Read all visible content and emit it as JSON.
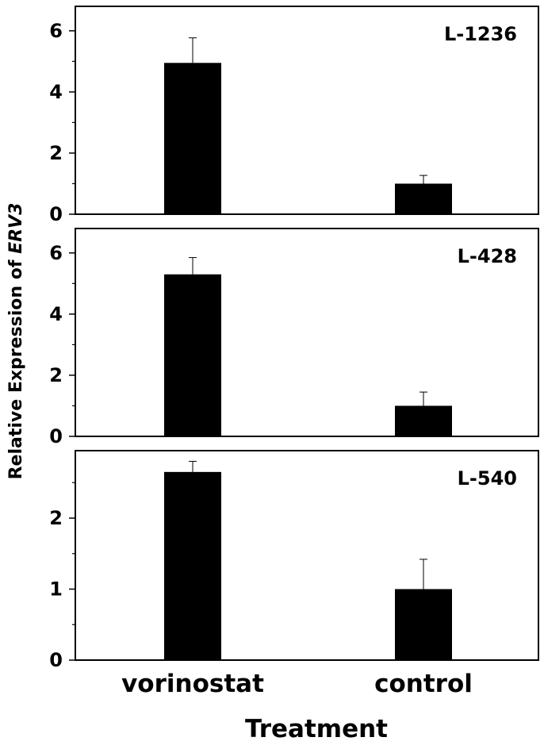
{
  "chart_data": [
    {
      "type": "bar",
      "label": "L-1236",
      "categories": [
        "vorinostat",
        "control"
      ],
      "values": [
        4.95,
        1.0
      ],
      "errors": [
        0.82,
        0.27
      ],
      "ylim": [
        0,
        6.8
      ],
      "yticks": [
        0,
        2,
        4,
        6
      ],
      "minor_ticks": [
        1,
        3,
        5
      ]
    },
    {
      "type": "bar",
      "label": "L-428",
      "categories": [
        "vorinostat",
        "control"
      ],
      "values": [
        5.3,
        1.0
      ],
      "errors": [
        0.55,
        0.45
      ],
      "ylim": [
        0,
        6.8
      ],
      "yticks": [
        0,
        2,
        4,
        6
      ],
      "minor_ticks": [
        1,
        3,
        5
      ]
    },
    {
      "type": "bar",
      "label": "L-540",
      "categories": [
        "vorinostat",
        "control"
      ],
      "values": [
        2.65,
        1.0
      ],
      "errors": [
        0.15,
        0.42
      ],
      "ylim": [
        0,
        2.95
      ],
      "yticks": [
        0,
        1,
        2
      ],
      "minor_ticks": [
        0.5,
        1.5,
        2.5
      ]
    }
  ],
  "xlabel": "Treatment",
  "ylabel_prefix": "Relative Expression of ",
  "ylabel_gene": "ERV3",
  "categories": [
    "vorinostat",
    "control"
  ],
  "colors": {
    "bar": "#000000",
    "error": "#000000",
    "frame": "#000000",
    "error_style": "upper-only"
  }
}
